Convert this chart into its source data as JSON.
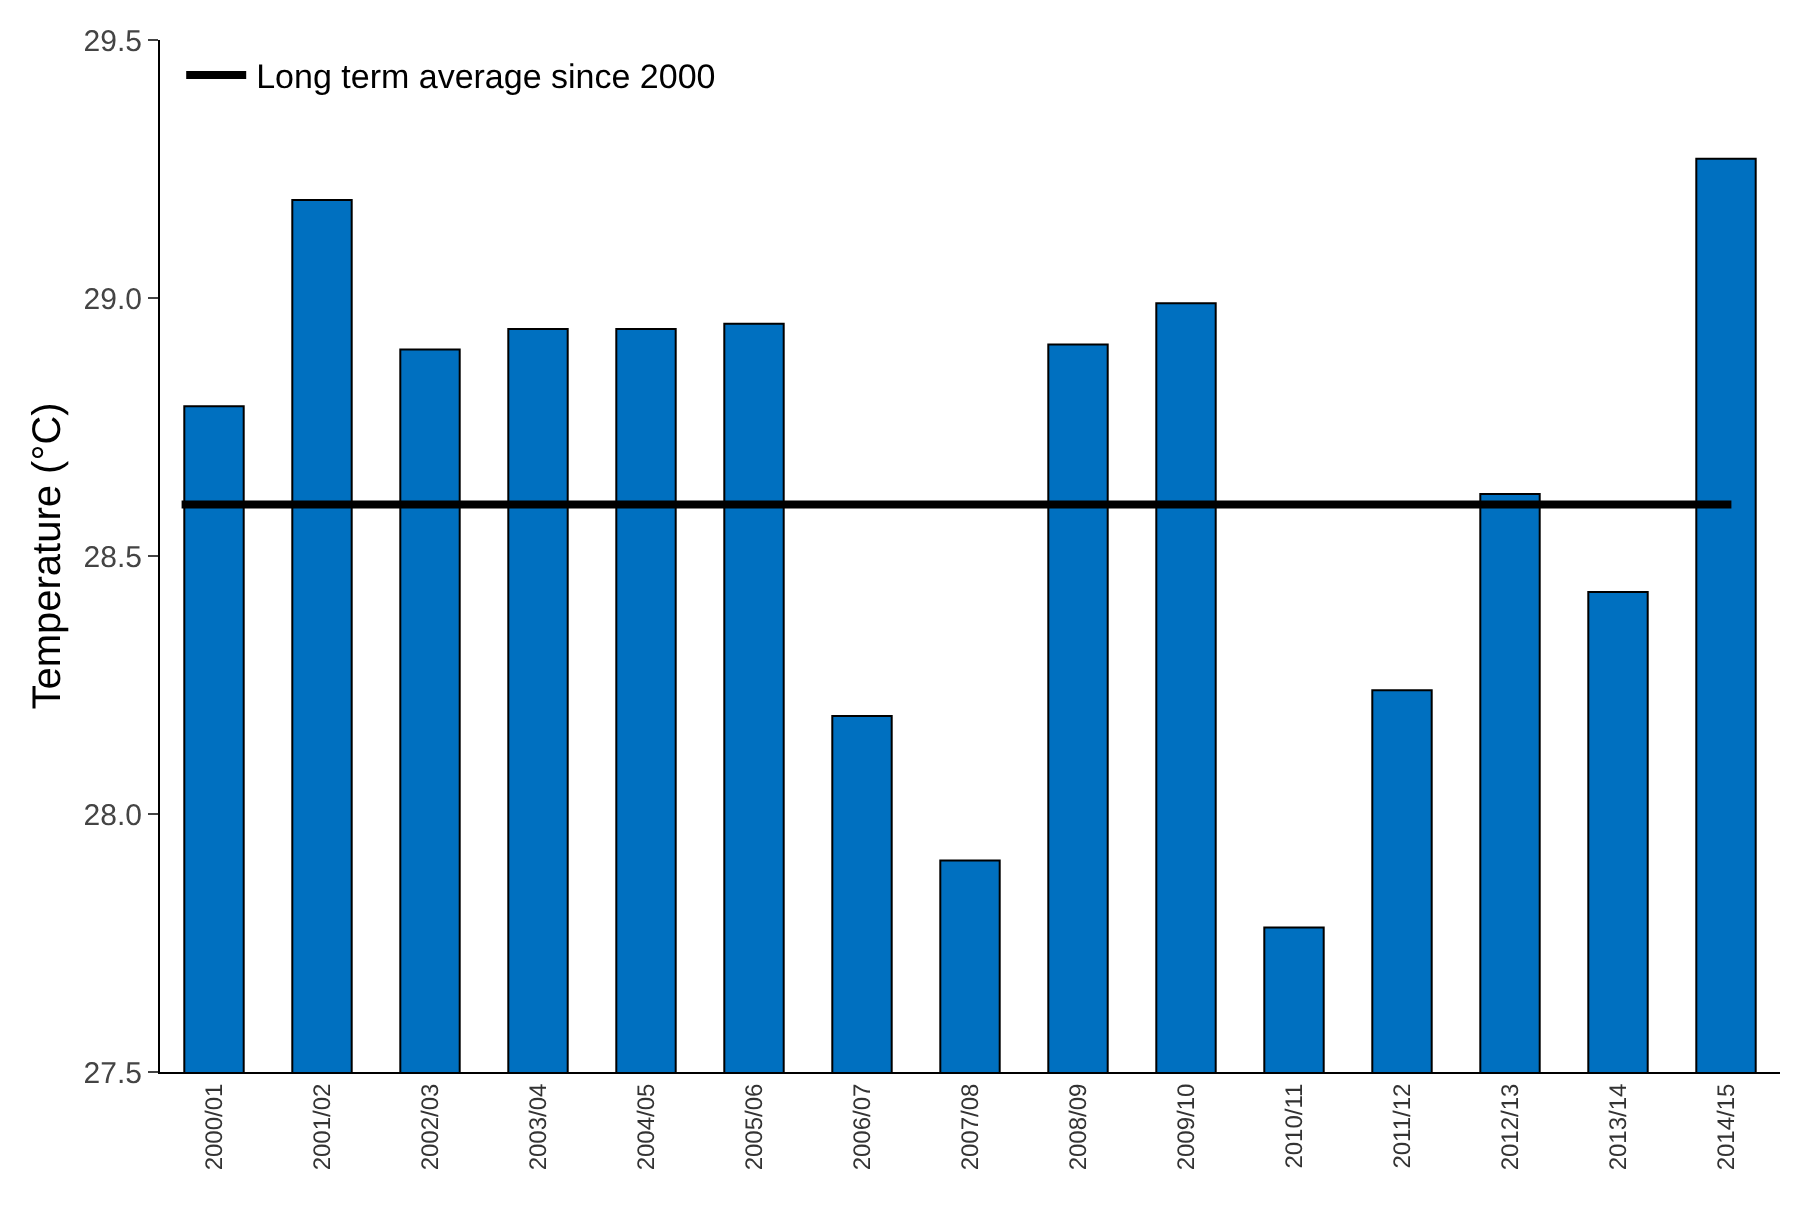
{
  "chart_data": {
    "type": "bar",
    "ylabel": "Temperature (°C)",
    "categories": [
      "2000/01",
      "2001/02",
      "2002/03",
      "2003/04",
      "2004/05",
      "2005/06",
      "2006/07",
      "2007/08",
      "2008/09",
      "2009/10",
      "2010/11",
      "2011/12",
      "2012/13",
      "2013/14",
      "2014/15"
    ],
    "values": [
      28.79,
      29.19,
      28.9,
      28.94,
      28.94,
      28.95,
      28.19,
      27.91,
      28.91,
      28.99,
      27.78,
      28.24,
      28.62,
      28.43,
      29.27
    ],
    "color": "#0070c0",
    "ylim": [
      27.5,
      29.5
    ],
    "yticks": [
      {
        "value": 27.5,
        "label": "27.5"
      },
      {
        "value": 28,
        "label": "28.0"
      },
      {
        "value": 28.5,
        "label": "28.5"
      },
      {
        "value": 29,
        "label": "29.0"
      },
      {
        "value": 29.5,
        "label": "29.5"
      }
    ],
    "ref_lines": [
      {
        "axis": "y",
        "value": 28.6,
        "label": "Long term average since 2000",
        "color": "#000000",
        "line_style": "solid"
      }
    ],
    "legend": "top left",
    "grid": false
  }
}
